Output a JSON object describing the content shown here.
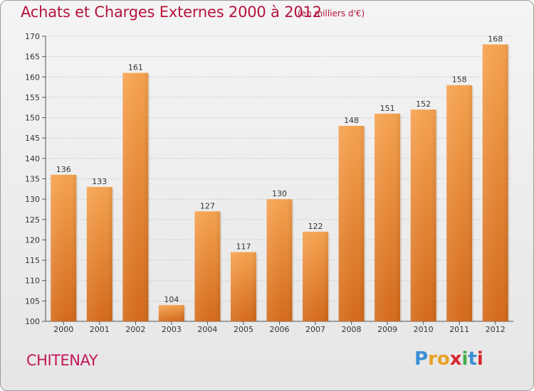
{
  "header": {
    "title": "Achats et Charges Externes 2000 à 2012",
    "subtitle": "(en milliers d'€)"
  },
  "footer": {
    "city": "CHITENAY",
    "logo": [
      "P",
      "r",
      "o",
      "x",
      "i",
      "t",
      "i"
    ]
  },
  "colors": {
    "title": "#b5133b",
    "bar_top": "#f5a24f",
    "bar_bottom": "#d46a1a",
    "logo": [
      "#3b8fd6",
      "#e8a323",
      "#e8a323",
      "#d9262e",
      "#3fae49",
      "#3b8fd6",
      "#d9262e"
    ]
  },
  "chart_data": {
    "type": "bar",
    "categories": [
      "2000",
      "2001",
      "2002",
      "2003",
      "2004",
      "2005",
      "2006",
      "2007",
      "2008",
      "2009",
      "2010",
      "2011",
      "2012"
    ],
    "values": [
      136,
      133,
      161,
      104,
      127,
      117,
      130,
      122,
      148,
      151,
      152,
      158,
      168
    ],
    "ylim": [
      100,
      170
    ],
    "yticks": [
      100,
      105,
      110,
      115,
      120,
      125,
      130,
      135,
      140,
      145,
      150,
      155,
      160,
      165,
      170
    ],
    "grid": true,
    "legend": "none"
  }
}
